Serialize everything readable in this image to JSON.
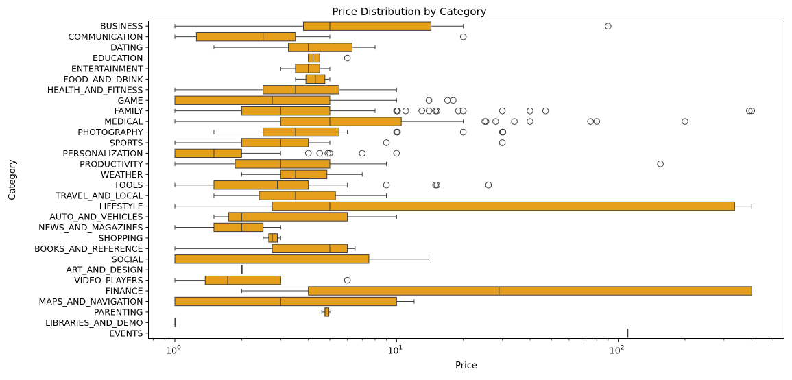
{
  "chart_data": {
    "type": "boxplot",
    "orientation": "horizontal",
    "title": "Price Distribution by Category",
    "xlabel": "Price",
    "ylabel": "Category",
    "x_scale": "log",
    "xlim": [
      0.76,
      560
    ],
    "x_ticks": [
      {
        "value": 1,
        "base": "10",
        "exp": "0"
      },
      {
        "value": 10,
        "base": "10",
        "exp": "1"
      },
      {
        "value": 100,
        "base": "10",
        "exp": "2"
      }
    ],
    "grid": false,
    "box_color": "#E69F1A",
    "line_color": "#3d3d3d",
    "categories": [
      {
        "name": "BUSINESS",
        "whisker_low": 1.0,
        "q1": 3.8,
        "median": 5.0,
        "q3": 14.3,
        "whisker_high": 20.0,
        "outliers": [
          90.0
        ]
      },
      {
        "name": "COMMUNICATION",
        "whisker_low": 1.0,
        "q1": 1.25,
        "median": 2.5,
        "q3": 3.5,
        "whisker_high": 5.0,
        "outliers": [
          20.0
        ]
      },
      {
        "name": "DATING",
        "whisker_low": 1.5,
        "q1": 3.25,
        "median": 4.0,
        "q3": 6.3,
        "whisker_high": 8.0,
        "outliers": []
      },
      {
        "name": "EDUCATION",
        "whisker_low": 4.0,
        "q1": 4.0,
        "median": 4.2,
        "q3": 4.5,
        "whisker_high": 4.5,
        "outliers": [
          6.0
        ]
      },
      {
        "name": "ENTERTAINMENT",
        "whisker_low": 3.0,
        "q1": 3.5,
        "median": 4.0,
        "q3": 4.5,
        "whisker_high": 5.0,
        "outliers": []
      },
      {
        "name": "FOOD_AND_DRINK",
        "whisker_low": 3.5,
        "q1": 3.9,
        "median": 4.3,
        "q3": 4.75,
        "whisker_high": 5.0,
        "outliers": []
      },
      {
        "name": "HEALTH_AND_FITNESS",
        "whisker_low": 1.0,
        "q1": 2.5,
        "median": 3.5,
        "q3": 5.5,
        "whisker_high": 10.0,
        "outliers": []
      },
      {
        "name": "GAME",
        "whisker_low": 1.0,
        "q1": 1.0,
        "median": 2.75,
        "q3": 5.0,
        "whisker_high": 10.0,
        "outliers": [
          14.0,
          17.0,
          18.0
        ]
      },
      {
        "name": "FAMILY",
        "whisker_low": 1.0,
        "q1": 2.0,
        "median": 3.0,
        "q3": 5.0,
        "whisker_high": 8.0,
        "outliers": [
          10.0,
          10.1,
          11.0,
          13.0,
          14.0,
          15.0,
          15.2,
          19.0,
          20.0,
          30.0,
          40.0,
          47.0,
          390.0,
          400.0
        ]
      },
      {
        "name": "MEDICAL",
        "whisker_low": 1.0,
        "q1": 3.0,
        "median": 5.0,
        "q3": 10.5,
        "whisker_high": 20.0,
        "outliers": [
          25.0,
          25.3,
          28.0,
          34.0,
          40.0,
          75.0,
          80.0,
          200.0
        ]
      },
      {
        "name": "PHOTOGRAPHY",
        "whisker_low": 1.5,
        "q1": 2.5,
        "median": 3.5,
        "q3": 5.5,
        "whisker_high": 6.0,
        "outliers": [
          10.0,
          10.1,
          20.0,
          30.0,
          30.2
        ]
      },
      {
        "name": "SPORTS",
        "whisker_low": 1.0,
        "q1": 2.0,
        "median": 3.0,
        "q3": 4.0,
        "whisker_high": 5.0,
        "outliers": [
          9.0,
          30.0
        ]
      },
      {
        "name": "PERSONALIZATION",
        "whisker_low": 1.0,
        "q1": 1.0,
        "median": 1.5,
        "q3": 2.0,
        "whisker_high": 3.0,
        "outliers": [
          4.0,
          4.5,
          4.9,
          5.0,
          7.0,
          10.0
        ]
      },
      {
        "name": "PRODUCTIVITY",
        "whisker_low": 1.0,
        "q1": 1.87,
        "median": 3.0,
        "q3": 5.0,
        "whisker_high": 9.0,
        "outliers": [
          155.0
        ]
      },
      {
        "name": "WEATHER",
        "whisker_low": 2.0,
        "q1": 3.0,
        "median": 3.5,
        "q3": 4.85,
        "whisker_high": 7.0,
        "outliers": []
      },
      {
        "name": "TOOLS",
        "whisker_low": 1.0,
        "q1": 1.5,
        "median": 2.9,
        "q3": 4.0,
        "whisker_high": 6.0,
        "outliers": [
          9.0,
          15.0,
          15.2,
          26.0
        ]
      },
      {
        "name": "TRAVEL_AND_LOCAL",
        "whisker_low": 1.5,
        "q1": 2.4,
        "median": 3.5,
        "q3": 5.3,
        "whisker_high": 9.0,
        "outliers": []
      },
      {
        "name": "LIFESTYLE",
        "whisker_low": 1.0,
        "q1": 2.75,
        "median": 5.0,
        "q3": 335.0,
        "whisker_high": 400.0,
        "outliers": []
      },
      {
        "name": "AUTO_AND_VEHICLES",
        "whisker_low": 1.5,
        "q1": 1.75,
        "median": 2.0,
        "q3": 6.0,
        "whisker_high": 10.0,
        "outliers": []
      },
      {
        "name": "NEWS_AND_MAGAZINES",
        "whisker_low": 1.0,
        "q1": 1.5,
        "median": 2.0,
        "q3": 2.5,
        "whisker_high": 3.0,
        "outliers": []
      },
      {
        "name": "SHOPPING",
        "whisker_low": 2.5,
        "q1": 2.65,
        "median": 2.75,
        "q3": 2.9,
        "whisker_high": 3.0,
        "outliers": []
      },
      {
        "name": "BOOKS_AND_REFERENCE",
        "whisker_low": 1.0,
        "q1": 2.75,
        "median": 5.0,
        "q3": 6.0,
        "whisker_high": 6.5,
        "outliers": []
      },
      {
        "name": "SOCIAL",
        "whisker_low": 1.0,
        "q1": 1.0,
        "median": 1.0,
        "q3": 7.5,
        "whisker_high": 14.0,
        "outliers": []
      },
      {
        "name": "ART_AND_DESIGN",
        "whisker_low": 2.0,
        "q1": 2.0,
        "median": 2.0,
        "q3": 2.0,
        "whisker_high": 2.0,
        "outliers": []
      },
      {
        "name": "VIDEO_PLAYERS",
        "whisker_low": 1.0,
        "q1": 1.37,
        "median": 1.73,
        "q3": 3.0,
        "whisker_high": 3.0,
        "outliers": [
          6.0
        ]
      },
      {
        "name": "FINANCE",
        "whisker_low": 2.0,
        "q1": 4.0,
        "median": 29.0,
        "q3": 400.0,
        "whisker_high": 400.0,
        "outliers": []
      },
      {
        "name": "MAPS_AND_NAVIGATION",
        "whisker_low": 1.0,
        "q1": 1.0,
        "median": 3.0,
        "q3": 10.0,
        "whisker_high": 12.0,
        "outliers": []
      },
      {
        "name": "PARENTING",
        "whisker_low": 4.6,
        "q1": 4.75,
        "median": 4.8,
        "q3": 4.95,
        "whisker_high": 5.05,
        "outliers": []
      },
      {
        "name": "LIBRARIES_AND_DEMO",
        "whisker_low": 1.0,
        "q1": 1.0,
        "median": 1.0,
        "q3": 1.0,
        "whisker_high": 1.0,
        "outliers": []
      },
      {
        "name": "EVENTS",
        "whisker_low": 109.99,
        "q1": 109.99,
        "median": 109.99,
        "q3": 109.99,
        "whisker_high": 109.99,
        "outliers": []
      }
    ]
  }
}
